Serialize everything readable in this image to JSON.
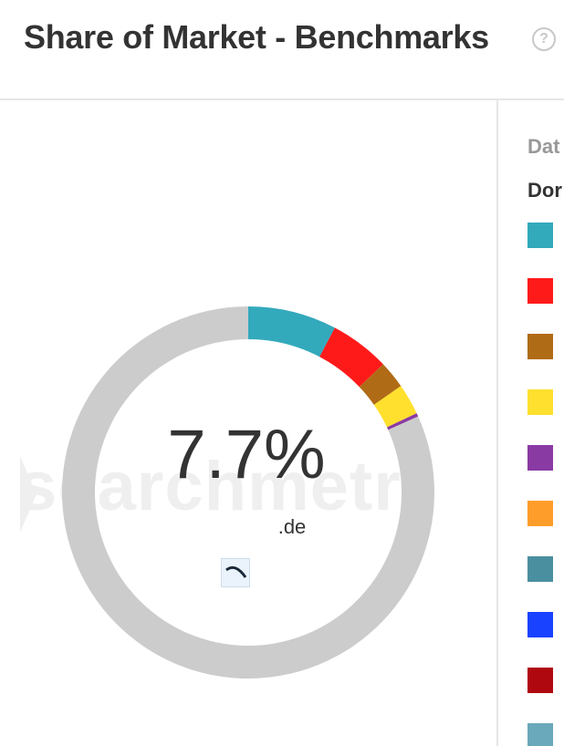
{
  "header": {
    "title": "Share of Market - Benchmarks",
    "help_icon": "question-mark-icon"
  },
  "legend": {
    "header_label": "Dat",
    "sub_label": "Dor",
    "colors": [
      "#33a9bc",
      "#ff1a1a",
      "#b06b16",
      "#ffe02e",
      "#8a3aa3",
      "#ff9d2a",
      "#4a8fa0",
      "#1842ff",
      "#b0080f",
      "#6aa8bb"
    ]
  },
  "chart_data": {
    "type": "pie",
    "donut": true,
    "center_value": "7.7%",
    "center_label": ".de",
    "watermark": "searchmetr",
    "slices": [
      {
        "value": 7.7,
        "color": "#33a9bc"
      },
      {
        "value": 5.2,
        "color": "#ff1a1a"
      },
      {
        "value": 2.4,
        "color": "#b06b16"
      },
      {
        "value": 2.7,
        "color": "#ffe02e"
      },
      {
        "value": 0.3,
        "color": "#8a3aa3"
      },
      {
        "value": 81.7,
        "color": "#cccccc"
      }
    ]
  }
}
